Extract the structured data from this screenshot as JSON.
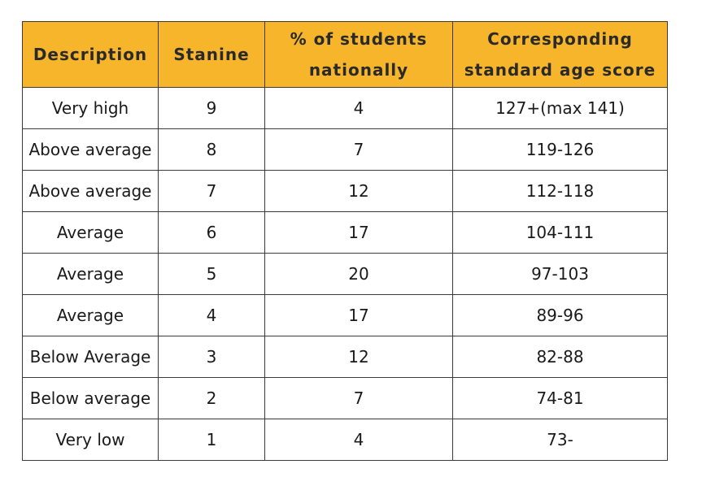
{
  "table": {
    "headers": [
      {
        "lines": [
          "Description"
        ]
      },
      {
        "lines": [
          "Stanine"
        ]
      },
      {
        "lines": [
          "% of students",
          "nationally"
        ]
      },
      {
        "lines": [
          "Corresponding",
          "standard age score"
        ]
      }
    ],
    "rows": [
      {
        "description": "Very high",
        "stanine": "9",
        "percent": "4",
        "score": "127+(max 141)"
      },
      {
        "description": "Above average",
        "stanine": "8",
        "percent": "7",
        "score": "119-126"
      },
      {
        "description": "Above average",
        "stanine": "7",
        "percent": "12",
        "score": "112-118"
      },
      {
        "description": "Average",
        "stanine": "6",
        "percent": "17",
        "score": "104-111"
      },
      {
        "description": "Average",
        "stanine": "5",
        "percent": "20",
        "score": "97-103"
      },
      {
        "description": "Average",
        "stanine": "4",
        "percent": "17",
        "score": "89-96"
      },
      {
        "description": "Below Average",
        "stanine": "3",
        "percent": "12",
        "score": "82-88"
      },
      {
        "description": "Below average",
        "stanine": "2",
        "percent": "7",
        "score": "74-81"
      },
      {
        "description": "Very low",
        "stanine": "1",
        "percent": "4",
        "score": "73-"
      }
    ]
  },
  "colors": {
    "header_background": "#f7b52b",
    "border": "#3a3a3a"
  }
}
